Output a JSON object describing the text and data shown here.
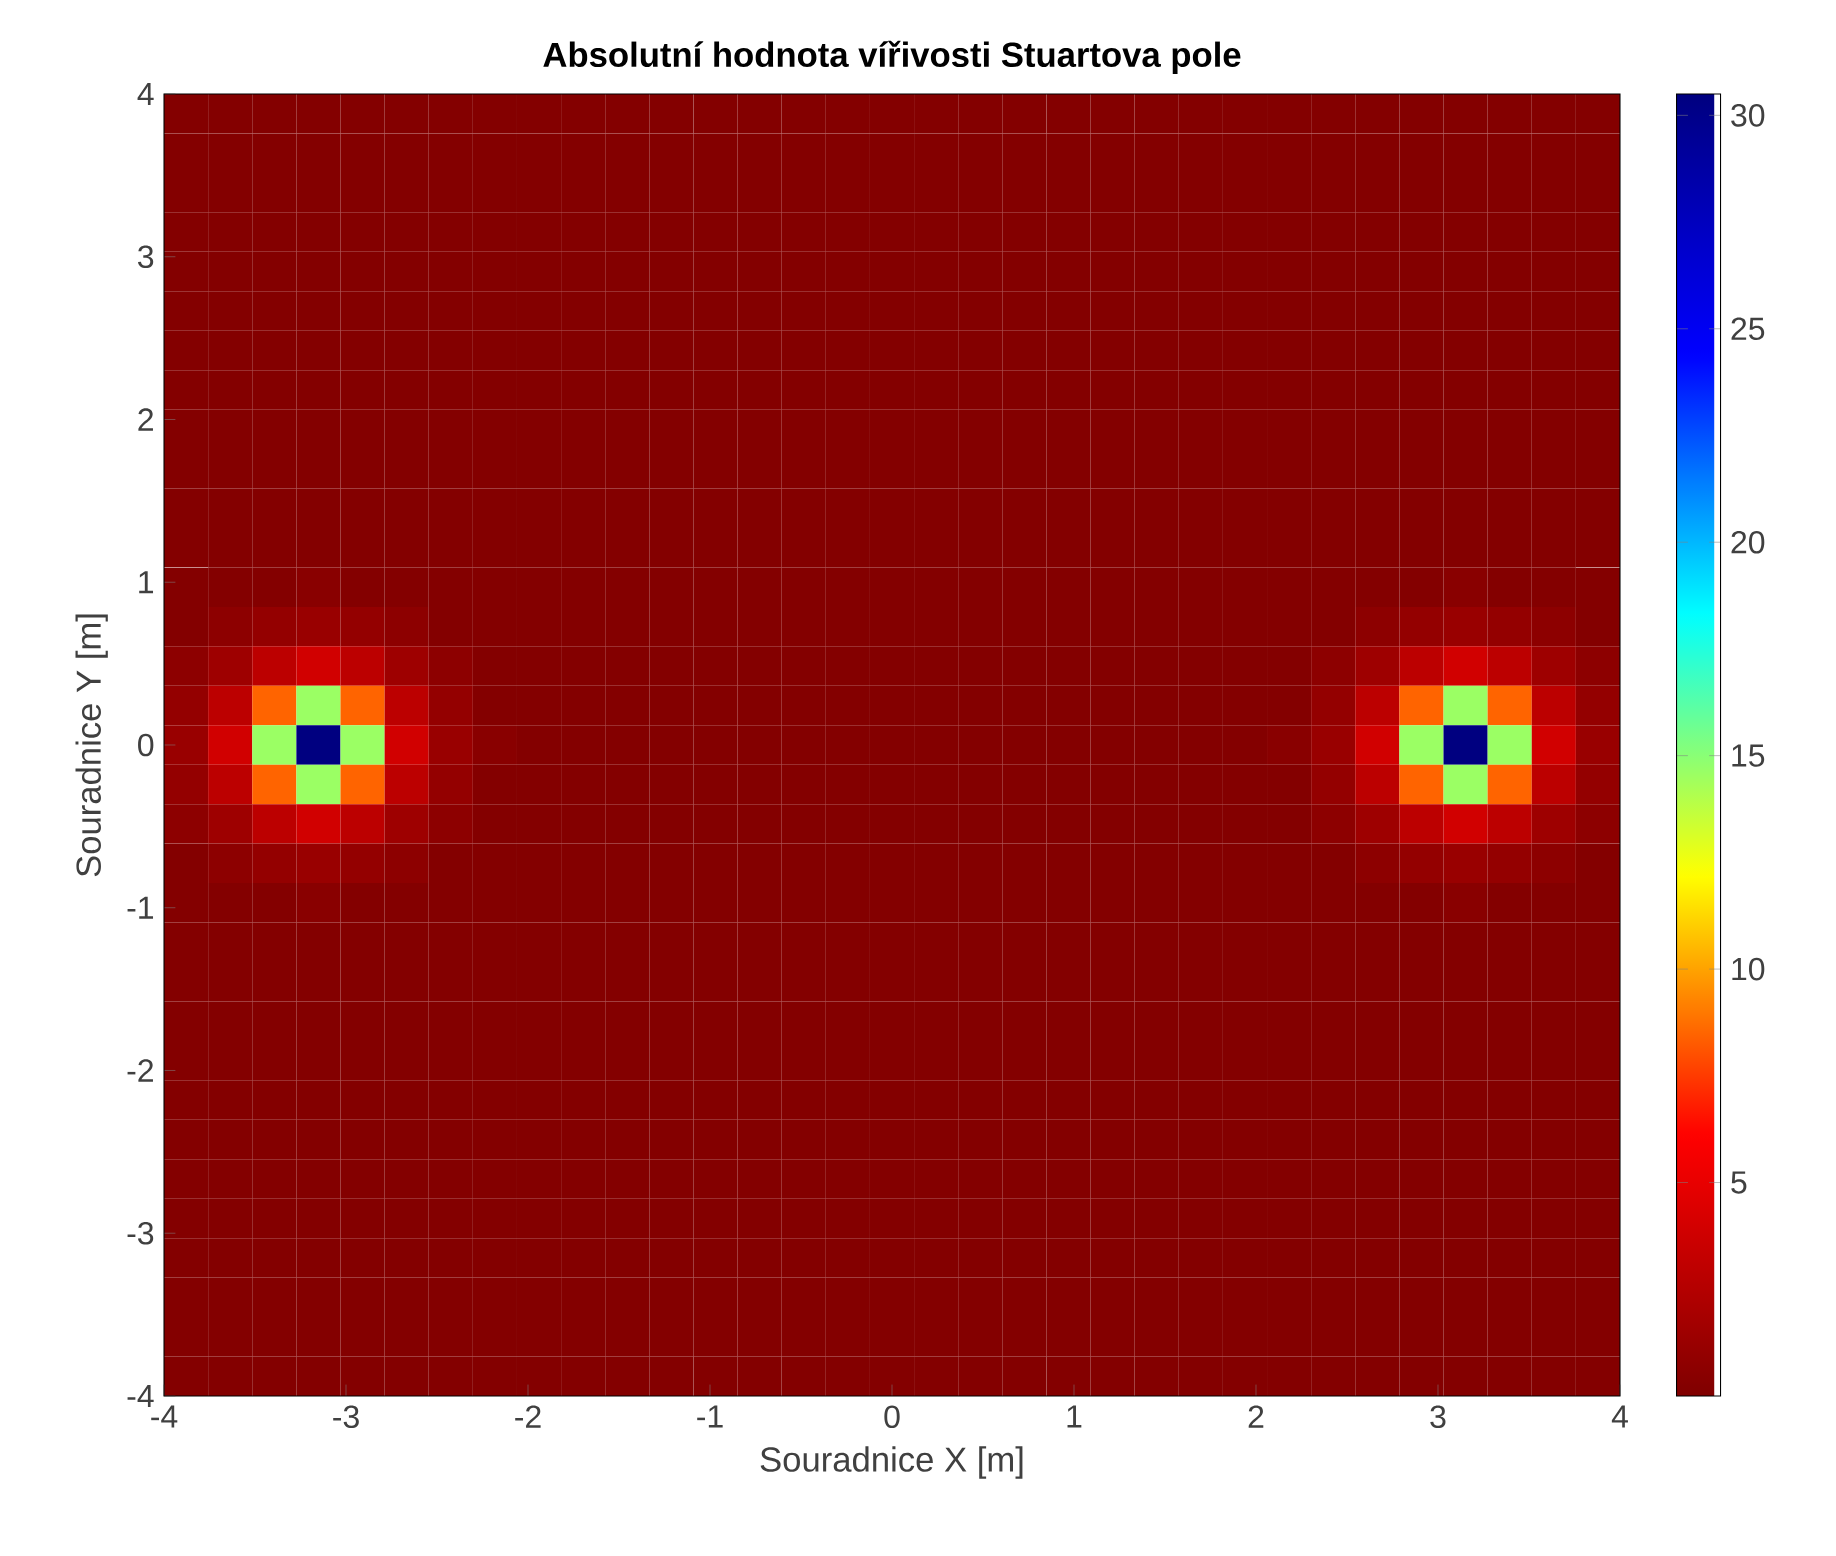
{
  "chart_data": {
    "type": "heatmap",
    "title": "Absolutní hodnota vířivosti Stuartova pole",
    "xlabel": "Souradnice X [m]",
    "ylabel": "Souradnice Y [m]",
    "xlim": [
      -4,
      4
    ],
    "ylim": [
      -4,
      4
    ],
    "xticks": [
      -4,
      -3,
      -2,
      -1,
      0,
      1,
      2,
      3,
      4
    ],
    "yticks": [
      -4,
      -3,
      -2,
      -1,
      0,
      1,
      2,
      3,
      4
    ],
    "clim": [
      0,
      30.5
    ],
    "cticks": [
      5,
      10,
      15,
      20,
      25,
      30
    ],
    "cells": [
      [
        0.2,
        0.2,
        0.2,
        0.2,
        0.2,
        0.2,
        0.2,
        0.2,
        0.2,
        0.2,
        0.2,
        0.2,
        0.2,
        0.2,
        0.2,
        0.2,
        0.2,
        0.2,
        0.2,
        0.2,
        0.2,
        0.2,
        0.2,
        0.2,
        0.2,
        0.2,
        0.2,
        0.2,
        0.2,
        0.2,
        0.2,
        0.2,
        0.2
      ],
      [
        0.2,
        0.2,
        0.2,
        0.2,
        0.2,
        0.2,
        0.2,
        0.2,
        0.2,
        0.2,
        0.2,
        0.2,
        0.2,
        0.2,
        0.2,
        0.2,
        0.2,
        0.2,
        0.2,
        0.2,
        0.2,
        0.2,
        0.2,
        0.2,
        0.2,
        0.2,
        0.2,
        0.2,
        0.2,
        0.2,
        0.2,
        0.2,
        0.2
      ],
      [
        0.2,
        0.2,
        0.2,
        0.2,
        0.2,
        0.2,
        0.2,
        0.2,
        0.2,
        0.2,
        0.2,
        0.2,
        0.2,
        0.2,
        0.2,
        0.2,
        0.2,
        0.2,
        0.2,
        0.2,
        0.2,
        0.2,
        0.2,
        0.2,
        0.2,
        0.2,
        0.2,
        0.2,
        0.2,
        0.2,
        0.2,
        0.2,
        0.2
      ],
      [
        0.2,
        0.2,
        0.2,
        0.2,
        0.2,
        0.2,
        0.2,
        0.2,
        0.2,
        0.2,
        0.2,
        0.2,
        0.2,
        0.2,
        0.2,
        0.2,
        0.2,
        0.2,
        0.2,
        0.2,
        0.2,
        0.2,
        0.2,
        0.2,
        0.2,
        0.2,
        0.2,
        0.2,
        0.2,
        0.2,
        0.2,
        0.2,
        0.2
      ],
      [
        0.2,
        0.2,
        0.2,
        0.2,
        0.2,
        0.2,
        0.2,
        0.2,
        0.2,
        0.2,
        0.2,
        0.2,
        0.2,
        0.2,
        0.2,
        0.2,
        0.2,
        0.2,
        0.2,
        0.2,
        0.2,
        0.2,
        0.2,
        0.2,
        0.2,
        0.2,
        0.2,
        0.2,
        0.2,
        0.2,
        0.2,
        0.2,
        0.2
      ],
      [
        0.2,
        0.2,
        0.2,
        0.2,
        0.2,
        0.2,
        0.2,
        0.2,
        0.2,
        0.2,
        0.2,
        0.2,
        0.2,
        0.2,
        0.2,
        0.2,
        0.2,
        0.2,
        0.2,
        0.2,
        0.2,
        0.2,
        0.2,
        0.2,
        0.2,
        0.2,
        0.2,
        0.2,
        0.2,
        0.2,
        0.2,
        0.2,
        0.2
      ],
      [
        0.2,
        0.2,
        0.2,
        0.2,
        0.2,
        0.2,
        0.2,
        0.2,
        0.2,
        0.2,
        0.2,
        0.2,
        0.2,
        0.2,
        0.2,
        0.2,
        0.2,
        0.2,
        0.2,
        0.2,
        0.2,
        0.2,
        0.2,
        0.2,
        0.2,
        0.2,
        0.2,
        0.2,
        0.2,
        0.2,
        0.2,
        0.2,
        0.2
      ],
      [
        0.2,
        0.2,
        0.2,
        0.2,
        0.2,
        0.2,
        0.2,
        0.2,
        0.2,
        0.2,
        0.2,
        0.2,
        0.2,
        0.2,
        0.2,
        0.2,
        0.2,
        0.2,
        0.2,
        0.2,
        0.2,
        0.2,
        0.2,
        0.2,
        0.2,
        0.2,
        0.2,
        0.2,
        0.2,
        0.2,
        0.2,
        0.2,
        0.2
      ],
      [
        0.2,
        0.2,
        0.2,
        0.2,
        0.2,
        0.2,
        0.2,
        0.2,
        0.2,
        0.2,
        0.2,
        0.2,
        0.2,
        0.2,
        0.2,
        0.2,
        0.2,
        0.2,
        0.2,
        0.2,
        0.2,
        0.2,
        0.2,
        0.2,
        0.2,
        0.2,
        0.2,
        0.2,
        0.2,
        0.2,
        0.2,
        0.2,
        0.2
      ],
      [
        0.2,
        0.2,
        0.2,
        0.2,
        0.2,
        0.2,
        0.2,
        0.2,
        0.2,
        0.2,
        0.2,
        0.2,
        0.2,
        0.2,
        0.2,
        0.2,
        0.2,
        0.2,
        0.2,
        0.2,
        0.2,
        0.2,
        0.2,
        0.2,
        0.2,
        0.2,
        0.2,
        0.2,
        0.2,
        0.2,
        0.2,
        0.2,
        0.2
      ],
      [
        0.2,
        0.2,
        0.2,
        0.2,
        0.2,
        0.2,
        0.2,
        0.2,
        0.2,
        0.2,
        0.2,
        0.2,
        0.2,
        0.2,
        0.2,
        0.2,
        0.2,
        0.2,
        0.2,
        0.2,
        0.2,
        0.2,
        0.2,
        0.2,
        0.2,
        0.2,
        0.2,
        0.2,
        0.2,
        0.2,
        0.2,
        0.2,
        0.2
      ],
      [
        0.2,
        0.2,
        0.2,
        0.2,
        0.2,
        0.2,
        0.2,
        0.2,
        0.2,
        0.2,
        0.2,
        0.2,
        0.2,
        0.2,
        0.2,
        0.2,
        0.2,
        0.2,
        0.2,
        0.2,
        0.2,
        0.2,
        0.2,
        0.2,
        0.2,
        0.2,
        0.2,
        0.2,
        0.2,
        0.2,
        0.2,
        0.2,
        0.2
      ],
      [
        0.2,
        0.2,
        0.2,
        0.46,
        0.2,
        0.2,
        0.2,
        0.2,
        0.2,
        0.2,
        0.2,
        0.2,
        0.2,
        0.2,
        0.2,
        0.2,
        0.2,
        0.2,
        0.2,
        0.2,
        0.2,
        0.2,
        0.2,
        0.2,
        0.2,
        0.2,
        0.2,
        0.2,
        0.2,
        0.46,
        0.2,
        0.2,
        0.2
      ],
      [
        0.2,
        0.66,
        1.0,
        1.2,
        1.0,
        0.66,
        0.2,
        0.2,
        0.2,
        0.2,
        0.2,
        0.2,
        0.2,
        0.2,
        0.2,
        0.2,
        0.2,
        0.2,
        0.2,
        0.2,
        0.2,
        0.2,
        0.2,
        0.2,
        0.2,
        0.2,
        0.2,
        0.66,
        1.0,
        1.2,
        1.0,
        0.66,
        0.2
      ],
      [
        0.66,
        1.45,
        2.9,
        3.9,
        2.9,
        1.45,
        0.66,
        0.2,
        0.2,
        0.2,
        0.2,
        0.2,
        0.2,
        0.2,
        0.2,
        0.2,
        0.2,
        0.2,
        0.2,
        0.2,
        0.2,
        0.2,
        0.2,
        0.2,
        0.2,
        0.2,
        0.66,
        1.45,
        2.9,
        3.9,
        2.9,
        1.45,
        0.66
      ],
      [
        1.0,
        2.9,
        8.5,
        14.6,
        8.5,
        2.9,
        1.0,
        0.2,
        0.2,
        0.2,
        0.2,
        0.2,
        0.2,
        0.2,
        0.2,
        0.2,
        0.2,
        0.2,
        0.2,
        0.2,
        0.2,
        0.2,
        0.2,
        0.2,
        0.2,
        0.2,
        1.0,
        2.9,
        8.5,
        14.6,
        8.5,
        2.9,
        1.0
      ],
      [
        1.2,
        3.9,
        14.6,
        30.5,
        14.6,
        3.9,
        1.2,
        0.46,
        0.2,
        0.2,
        0.2,
        0.2,
        0.2,
        0.2,
        0.2,
        0.2,
        0.2,
        0.2,
        0.2,
        0.2,
        0.2,
        0.2,
        0.2,
        0.2,
        0.2,
        0.46,
        1.2,
        3.9,
        14.6,
        30.5,
        14.6,
        3.9,
        1.2
      ],
      [
        1.0,
        2.9,
        8.5,
        14.6,
        8.5,
        2.9,
        1.0,
        0.2,
        0.2,
        0.2,
        0.2,
        0.2,
        0.2,
        0.2,
        0.2,
        0.2,
        0.2,
        0.2,
        0.2,
        0.2,
        0.2,
        0.2,
        0.2,
        0.2,
        0.2,
        0.2,
        1.0,
        2.9,
        8.5,
        14.6,
        8.5,
        2.9,
        1.0
      ],
      [
        0.66,
        1.45,
        2.9,
        3.9,
        2.9,
        1.45,
        0.66,
        0.2,
        0.2,
        0.2,
        0.2,
        0.2,
        0.2,
        0.2,
        0.2,
        0.2,
        0.2,
        0.2,
        0.2,
        0.2,
        0.2,
        0.2,
        0.2,
        0.2,
        0.2,
        0.2,
        0.66,
        1.45,
        2.9,
        3.9,
        2.9,
        1.45,
        0.66
      ],
      [
        0.2,
        0.66,
        1.0,
        1.2,
        1.0,
        0.66,
        0.2,
        0.2,
        0.2,
        0.2,
        0.2,
        0.2,
        0.2,
        0.2,
        0.2,
        0.2,
        0.2,
        0.2,
        0.2,
        0.2,
        0.2,
        0.2,
        0.2,
        0.2,
        0.2,
        0.2,
        0.2,
        0.66,
        1.0,
        1.2,
        1.0,
        0.66,
        0.2
      ],
      [
        0.2,
        0.2,
        0.2,
        0.46,
        0.2,
        0.2,
        0.2,
        0.2,
        0.2,
        0.2,
        0.2,
        0.2,
        0.2,
        0.2,
        0.2,
        0.2,
        0.2,
        0.2,
        0.2,
        0.2,
        0.2,
        0.2,
        0.2,
        0.2,
        0.2,
        0.2,
        0.2,
        0.2,
        0.2,
        0.46,
        0.2,
        0.2,
        0.2
      ],
      [
        0.2,
        0.2,
        0.2,
        0.2,
        0.2,
        0.2,
        0.2,
        0.2,
        0.2,
        0.2,
        0.2,
        0.2,
        0.2,
        0.2,
        0.2,
        0.2,
        0.2,
        0.2,
        0.2,
        0.2,
        0.2,
        0.2,
        0.2,
        0.2,
        0.2,
        0.2,
        0.2,
        0.2,
        0.2,
        0.2,
        0.2,
        0.2,
        0.2
      ],
      [
        0.2,
        0.2,
        0.2,
        0.2,
        0.2,
        0.2,
        0.2,
        0.2,
        0.2,
        0.2,
        0.2,
        0.2,
        0.2,
        0.2,
        0.2,
        0.2,
        0.2,
        0.2,
        0.2,
        0.2,
        0.2,
        0.2,
        0.2,
        0.2,
        0.2,
        0.2,
        0.2,
        0.2,
        0.2,
        0.2,
        0.2,
        0.2,
        0.2
      ],
      [
        0.2,
        0.2,
        0.2,
        0.2,
        0.2,
        0.2,
        0.2,
        0.2,
        0.2,
        0.2,
        0.2,
        0.2,
        0.2,
        0.2,
        0.2,
        0.2,
        0.2,
        0.2,
        0.2,
        0.2,
        0.2,
        0.2,
        0.2,
        0.2,
        0.2,
        0.2,
        0.2,
        0.2,
        0.2,
        0.2,
        0.2,
        0.2,
        0.2
      ],
      [
        0.2,
        0.2,
        0.2,
        0.2,
        0.2,
        0.2,
        0.2,
        0.2,
        0.2,
        0.2,
        0.2,
        0.2,
        0.2,
        0.2,
        0.2,
        0.2,
        0.2,
        0.2,
        0.2,
        0.2,
        0.2,
        0.2,
        0.2,
        0.2,
        0.2,
        0.2,
        0.2,
        0.2,
        0.2,
        0.2,
        0.2,
        0.2,
        0.2
      ],
      [
        0.2,
        0.2,
        0.2,
        0.2,
        0.2,
        0.2,
        0.2,
        0.2,
        0.2,
        0.2,
        0.2,
        0.2,
        0.2,
        0.2,
        0.2,
        0.2,
        0.2,
        0.2,
        0.2,
        0.2,
        0.2,
        0.2,
        0.2,
        0.2,
        0.2,
        0.2,
        0.2,
        0.2,
        0.2,
        0.2,
        0.2,
        0.2,
        0.2
      ],
      [
        0.2,
        0.2,
        0.2,
        0.2,
        0.2,
        0.2,
        0.2,
        0.2,
        0.2,
        0.2,
        0.2,
        0.2,
        0.2,
        0.2,
        0.2,
        0.2,
        0.2,
        0.2,
        0.2,
        0.2,
        0.2,
        0.2,
        0.2,
        0.2,
        0.2,
        0.2,
        0.2,
        0.2,
        0.2,
        0.2,
        0.2,
        0.2,
        0.2
      ],
      [
        0.2,
        0.2,
        0.2,
        0.2,
        0.2,
        0.2,
        0.2,
        0.2,
        0.2,
        0.2,
        0.2,
        0.2,
        0.2,
        0.2,
        0.2,
        0.2,
        0.2,
        0.2,
        0.2,
        0.2,
        0.2,
        0.2,
        0.2,
        0.2,
        0.2,
        0.2,
        0.2,
        0.2,
        0.2,
        0.2,
        0.2,
        0.2,
        0.2
      ],
      [
        0.2,
        0.2,
        0.2,
        0.2,
        0.2,
        0.2,
        0.2,
        0.2,
        0.2,
        0.2,
        0.2,
        0.2,
        0.2,
        0.2,
        0.2,
        0.2,
        0.2,
        0.2,
        0.2,
        0.2,
        0.2,
        0.2,
        0.2,
        0.2,
        0.2,
        0.2,
        0.2,
        0.2,
        0.2,
        0.2,
        0.2,
        0.2,
        0.2
      ],
      [
        0.2,
        0.2,
        0.2,
        0.2,
        0.2,
        0.2,
        0.2,
        0.2,
        0.2,
        0.2,
        0.2,
        0.2,
        0.2,
        0.2,
        0.2,
        0.2,
        0.2,
        0.2,
        0.2,
        0.2,
        0.2,
        0.2,
        0.2,
        0.2,
        0.2,
        0.2,
        0.2,
        0.2,
        0.2,
        0.2,
        0.2,
        0.2,
        0.2
      ],
      [
        0.2,
        0.2,
        0.2,
        0.2,
        0.2,
        0.2,
        0.2,
        0.2,
        0.2,
        0.2,
        0.2,
        0.2,
        0.2,
        0.2,
        0.2,
        0.2,
        0.2,
        0.2,
        0.2,
        0.2,
        0.2,
        0.2,
        0.2,
        0.2,
        0.2,
        0.2,
        0.2,
        0.2,
        0.2,
        0.2,
        0.2,
        0.2,
        0.2
      ],
      [
        0.2,
        0.2,
        0.2,
        0.2,
        0.2,
        0.2,
        0.2,
        0.2,
        0.2,
        0.2,
        0.2,
        0.2,
        0.2,
        0.2,
        0.2,
        0.2,
        0.2,
        0.2,
        0.2,
        0.2,
        0.2,
        0.2,
        0.2,
        0.2,
        0.2,
        0.2,
        0.2,
        0.2,
        0.2,
        0.2,
        0.2,
        0.2,
        0.2
      ],
      [
        0.2,
        0.2,
        0.2,
        0.2,
        0.2,
        0.2,
        0.2,
        0.2,
        0.2,
        0.2,
        0.2,
        0.2,
        0.2,
        0.2,
        0.2,
        0.2,
        0.2,
        0.2,
        0.2,
        0.2,
        0.2,
        0.2,
        0.2,
        0.2,
        0.2,
        0.2,
        0.2,
        0.2,
        0.2,
        0.2,
        0.2,
        0.2,
        0.2
      ]
    ]
  }
}
